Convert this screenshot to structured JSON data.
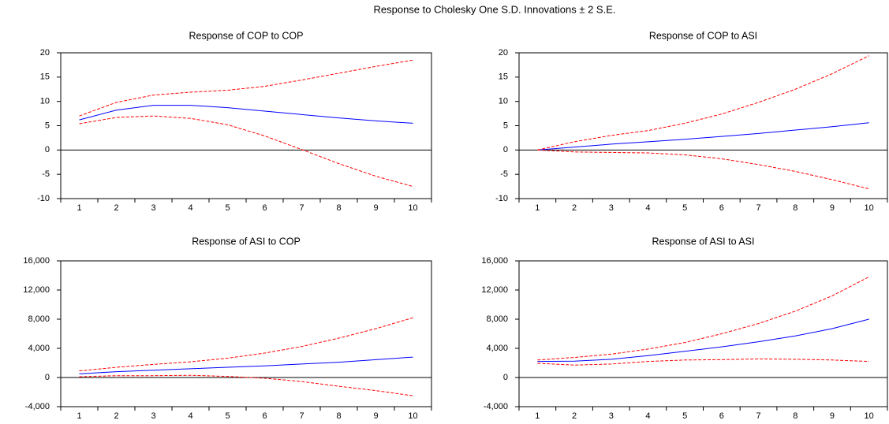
{
  "title": "Response to Cholesky One S.D. Innovations ± 2 S.E.",
  "chart_data": [
    {
      "type": "line",
      "title": "Response of COP to COP",
      "categories": [
        "1",
        "2",
        "3",
        "4",
        "5",
        "6",
        "7",
        "8",
        "9",
        "10"
      ],
      "ylim": [
        -10,
        20
      ],
      "yticks": [
        -10,
        -5,
        0,
        5,
        10,
        15,
        20
      ],
      "zero_line": true,
      "series": [
        {
          "color": "#0000ff",
          "dashed": false,
          "values": [
            6.2,
            8.2,
            9.2,
            9.2,
            8.7,
            8.0,
            7.3,
            6.6,
            6.0,
            5.5
          ]
        },
        {
          "color": "#ff0000",
          "dashed": true,
          "values": [
            7.0,
            9.8,
            11.3,
            11.9,
            12.3,
            13.1,
            14.4,
            15.8,
            17.2,
            18.5
          ]
        },
        {
          "color": "#ff0000",
          "dashed": true,
          "values": [
            5.4,
            6.7,
            7.0,
            6.5,
            5.2,
            2.9,
            0.1,
            -2.8,
            -5.4,
            -7.5
          ]
        }
      ]
    },
    {
      "type": "line",
      "title": "Response of COP to ASI",
      "categories": [
        "1",
        "2",
        "3",
        "4",
        "5",
        "6",
        "7",
        "8",
        "9",
        "10"
      ],
      "ylim": [
        -10,
        20
      ],
      "yticks": [
        -10,
        -5,
        0,
        5,
        10,
        15,
        20
      ],
      "zero_line": true,
      "series": [
        {
          "color": "#0000ff",
          "dashed": false,
          "values": [
            0,
            0.6,
            1.2,
            1.7,
            2.2,
            2.8,
            3.4,
            4.1,
            4.8,
            5.6
          ]
        },
        {
          "color": "#ff0000",
          "dashed": true,
          "values": [
            0,
            1.7,
            3.0,
            4.0,
            5.5,
            7.4,
            9.8,
            12.5,
            15.7,
            19.4
          ]
        },
        {
          "color": "#ff0000",
          "dashed": true,
          "values": [
            0,
            -0.4,
            -0.5,
            -0.6,
            -1.0,
            -1.8,
            -3.0,
            -4.4,
            -6.1,
            -8.0
          ]
        }
      ]
    },
    {
      "type": "line",
      "title": "Response of ASI to COP",
      "categories": [
        "1",
        "2",
        "3",
        "4",
        "5",
        "6",
        "7",
        "8",
        "9",
        "10"
      ],
      "ylim": [
        -4000,
        16000
      ],
      "yticks": [
        {
          "value": -4000,
          "label": "-4,000"
        },
        0,
        {
          "value": 4000,
          "label": "4,000"
        },
        {
          "value": 8000,
          "label": "8,000"
        },
        {
          "value": 12000,
          "label": "12,000"
        },
        {
          "value": 16000,
          "label": "16,000"
        }
      ],
      "zero_line": true,
      "series": [
        {
          "color": "#0000ff",
          "dashed": false,
          "values": [
            500,
            800,
            1000,
            1200,
            1400,
            1600,
            1850,
            2100,
            2450,
            2800
          ]
        },
        {
          "color": "#ff0000",
          "dashed": true,
          "values": [
            900,
            1400,
            1800,
            2150,
            2650,
            3350,
            4250,
            5400,
            6700,
            8200
          ]
        },
        {
          "color": "#ff0000",
          "dashed": true,
          "values": [
            100,
            250,
            250,
            300,
            150,
            -100,
            -550,
            -1200,
            -1800,
            -2500
          ]
        }
      ]
    },
    {
      "type": "line",
      "title": "Response of ASI to ASI",
      "categories": [
        "1",
        "2",
        "3",
        "4",
        "5",
        "6",
        "7",
        "8",
        "9",
        "10"
      ],
      "ylim": [
        -4000,
        16000
      ],
      "yticks": [
        {
          "value": -4000,
          "label": "-4,000"
        },
        0,
        {
          "value": 4000,
          "label": "4,000"
        },
        {
          "value": 8000,
          "label": "8,000"
        },
        {
          "value": 12000,
          "label": "12,000"
        },
        {
          "value": 16000,
          "label": "16,000"
        }
      ],
      "zero_line": true,
      "series": [
        {
          "color": "#0000ff",
          "dashed": false,
          "values": [
            2200,
            2250,
            2500,
            3000,
            3600,
            4200,
            4900,
            5700,
            6700,
            8000
          ]
        },
        {
          "color": "#ff0000",
          "dashed": true,
          "values": [
            2400,
            2750,
            3200,
            3900,
            4800,
            6000,
            7400,
            9100,
            11200,
            13800
          ]
        },
        {
          "color": "#ff0000",
          "dashed": true,
          "values": [
            1950,
            1700,
            1850,
            2200,
            2400,
            2450,
            2550,
            2500,
            2400,
            2200
          ]
        }
      ]
    }
  ]
}
